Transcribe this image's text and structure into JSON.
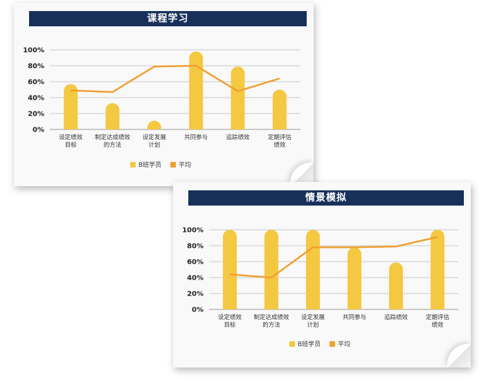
{
  "charts": [
    {
      "id": "card1",
      "title": "课程学习",
      "chart_data": {
        "type": "bar",
        "categories": [
          [
            "设定绩效",
            "目标"
          ],
          [
            "制定达成绩效",
            "的方法"
          ],
          [
            "设定发展",
            "计划"
          ],
          [
            "共同参与"
          ],
          [
            "追踪绩效"
          ],
          [
            "定期评估",
            "绩效"
          ]
        ],
        "ylim": [
          0,
          100
        ],
        "yticks": [
          "0%",
          "20%",
          "40%",
          "60%",
          "80%",
          "100%"
        ],
        "series": [
          {
            "name": "B班学员",
            "kind": "bar",
            "values": [
              57,
              33,
              11,
              98,
              79,
              50
            ]
          },
          {
            "name": "平均",
            "kind": "line",
            "values": [
              49,
              47,
              79,
              80,
              48,
              64
            ]
          }
        ],
        "legend_position": "bottom",
        "grid": true
      }
    },
    {
      "id": "card2",
      "title": "情景模拟",
      "chart_data": {
        "type": "bar",
        "categories": [
          [
            "设定绩效",
            "目标"
          ],
          [
            "制定达成绩效",
            "的方法"
          ],
          [
            "设定发展",
            "计划"
          ],
          [
            "共同参与"
          ],
          [
            "追踪绩效"
          ],
          [
            "定期评估",
            "绩效"
          ]
        ],
        "ylim": [
          0,
          100
        ],
        "yticks": [
          "0%",
          "20%",
          "40%",
          "60%",
          "80%",
          "100%"
        ],
        "series": [
          {
            "name": "B班学员",
            "kind": "bar",
            "values": [
              100,
              100,
              100,
              78,
              59,
              100
            ]
          },
          {
            "name": "平均",
            "kind": "line",
            "values": [
              44,
              40,
              78,
              78,
              79,
              91
            ]
          }
        ],
        "legend_position": "bottom",
        "grid": true
      }
    }
  ],
  "colors": {
    "bar": "#f5c842",
    "line": "#f0a030",
    "grid": "#999999",
    "title_bg": "#17305a"
  }
}
